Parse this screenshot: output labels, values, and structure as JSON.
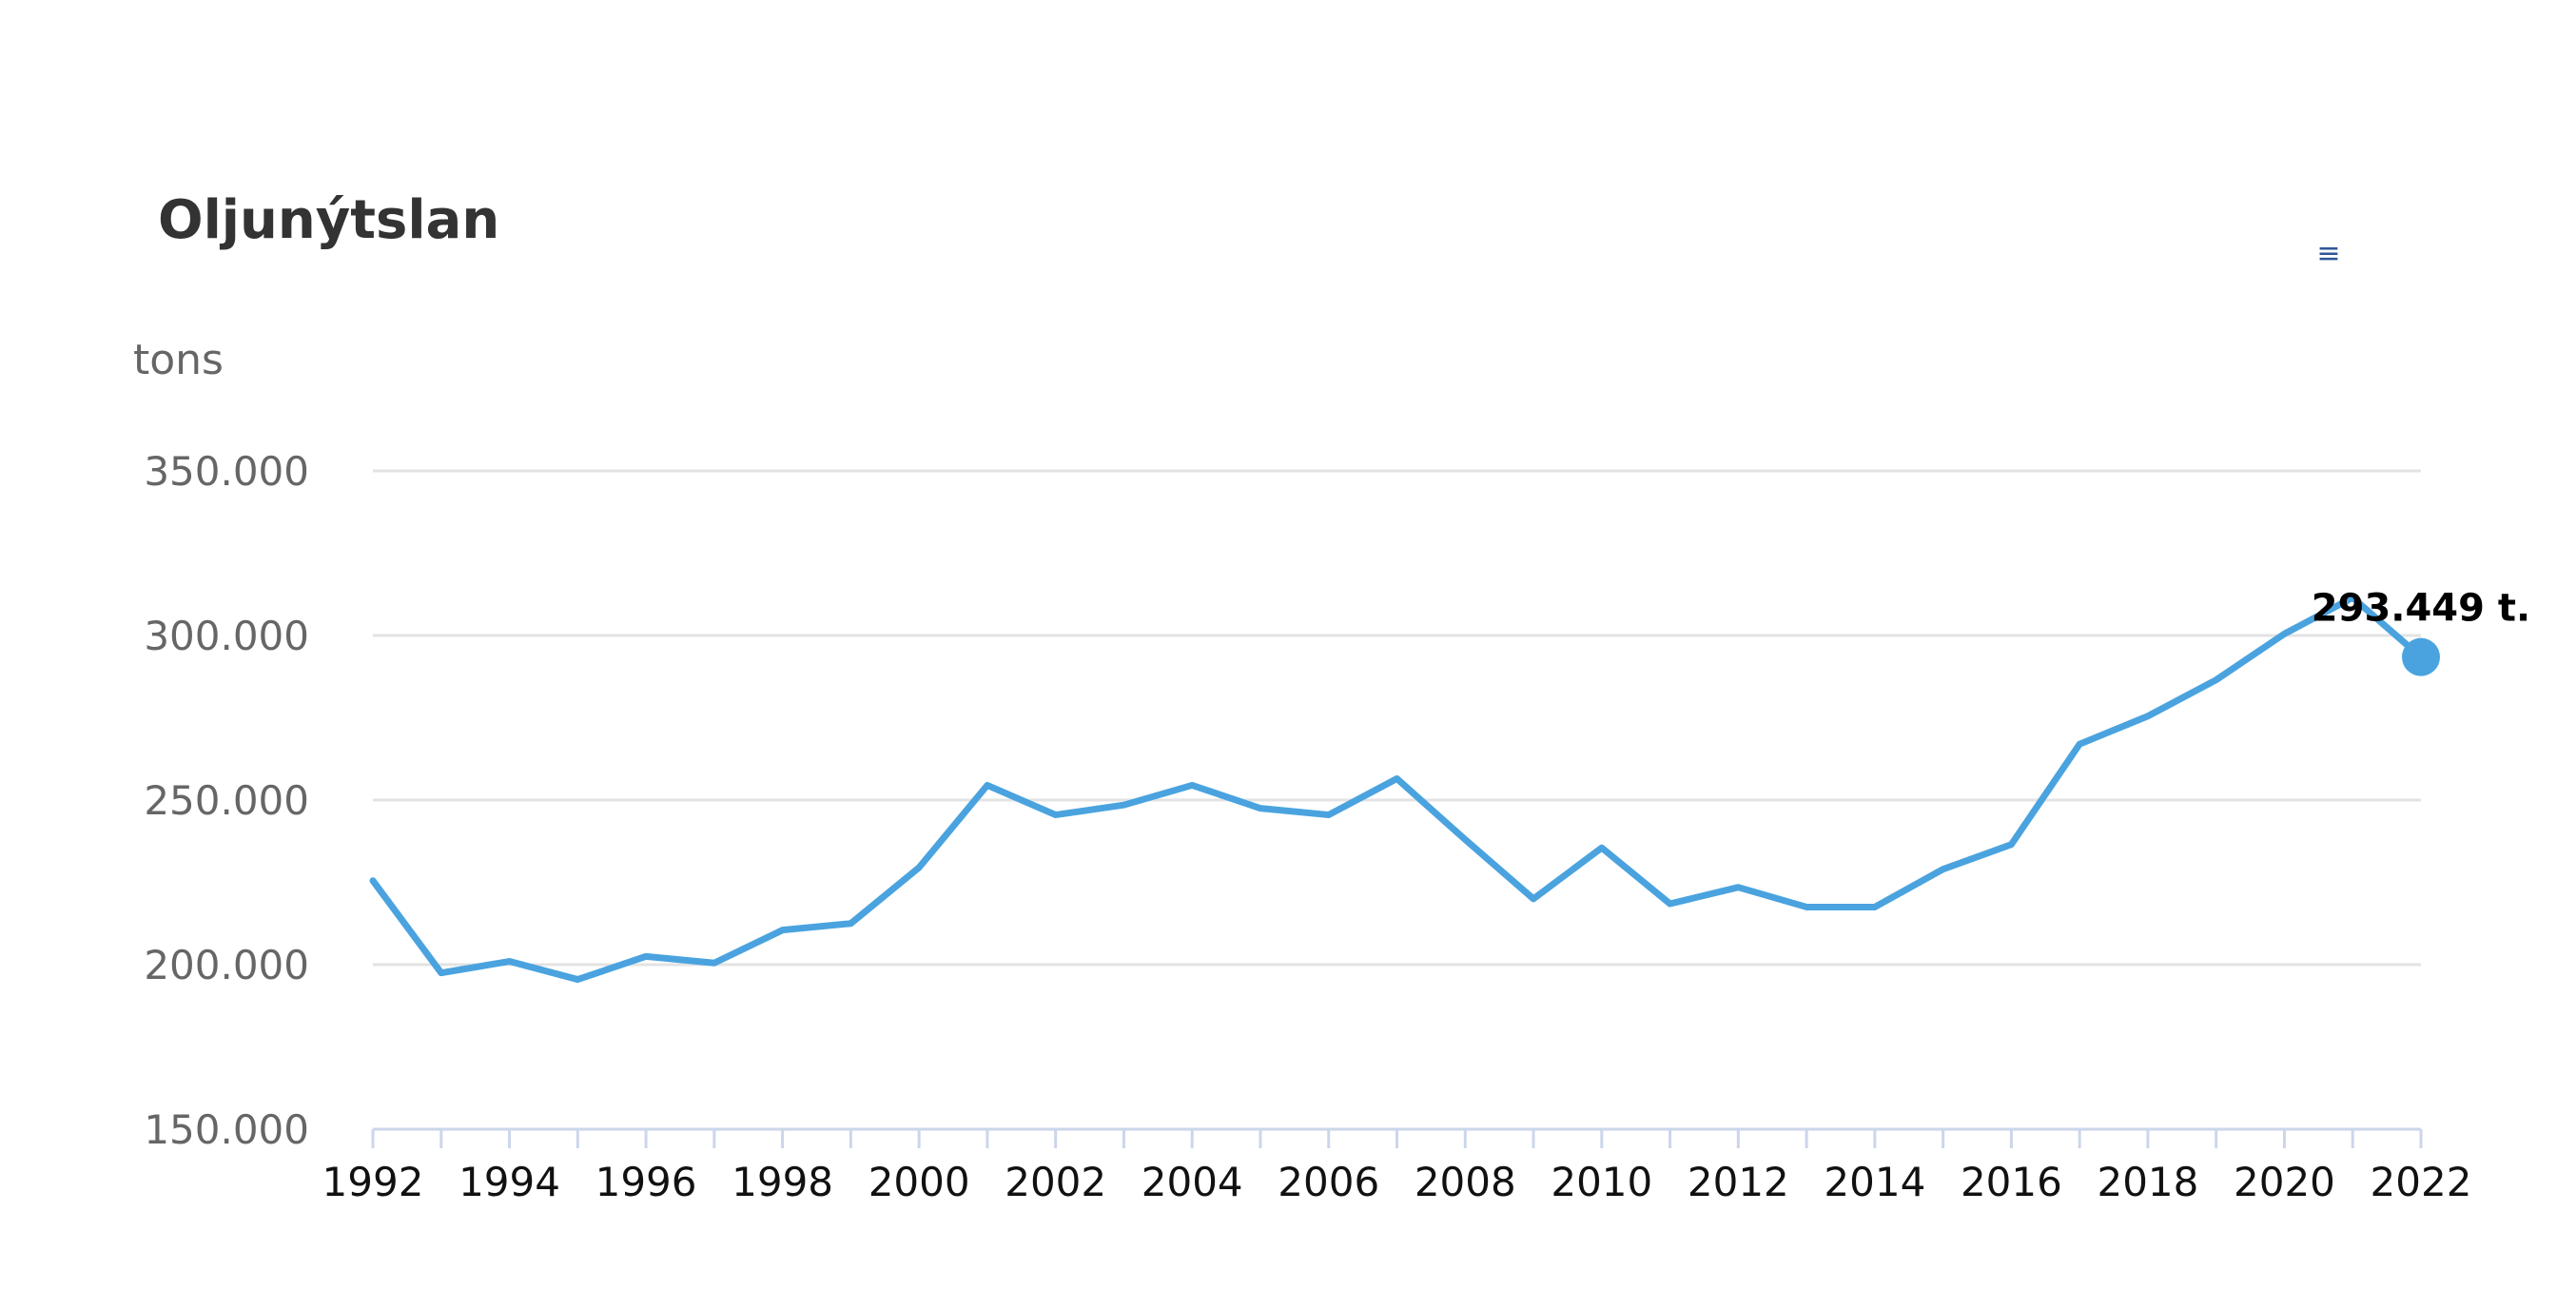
{
  "chart_data": {
    "type": "line",
    "title": "Oljunýtslan",
    "ylabel": "tons",
    "xlabel": "",
    "menu_icon": "hamburger-menu-icon",
    "menu_glyph": "≡",
    "color": "#4aa3df",
    "grid": true,
    "ylim": [
      150000,
      350000
    ],
    "yticks": [
      150000,
      200000,
      250000,
      300000,
      350000
    ],
    "ytick_labels": [
      "150.000",
      "200.000",
      "250.000",
      "300.000",
      "350.000"
    ],
    "xlim": [
      1992,
      2022
    ],
    "xtick_labels": [
      "1992",
      "1994",
      "1996",
      "1998",
      "2000",
      "2002",
      "2004",
      "2006",
      "2008",
      "2010",
      "2012",
      "2014",
      "2016",
      "2018",
      "2020",
      "2022"
    ],
    "x": [
      1992,
      1993,
      1994,
      1995,
      1996,
      1997,
      1998,
      1999,
      2000,
      2001,
      2002,
      2003,
      2004,
      2005,
      2006,
      2007,
      2008,
      2009,
      2010,
      2011,
      2012,
      2013,
      2014,
      2015,
      2016,
      2017,
      2018,
      2019,
      2020,
      2021,
      2022
    ],
    "series": [
      {
        "values": [
          225500,
          197500,
          201000,
          195500,
          202500,
          200500,
          210500,
          212500,
          229500,
          254500,
          245500,
          248500,
          254500,
          247500,
          245500,
          256500,
          238000,
          220000,
          235500,
          218500,
          223500,
          217500,
          217500,
          229000,
          236500,
          267000,
          275500,
          286500,
          300500,
          311500,
          293449
        ]
      }
    ],
    "annotations": [
      {
        "x": 2022,
        "label": "293.449 t."
      }
    ]
  }
}
